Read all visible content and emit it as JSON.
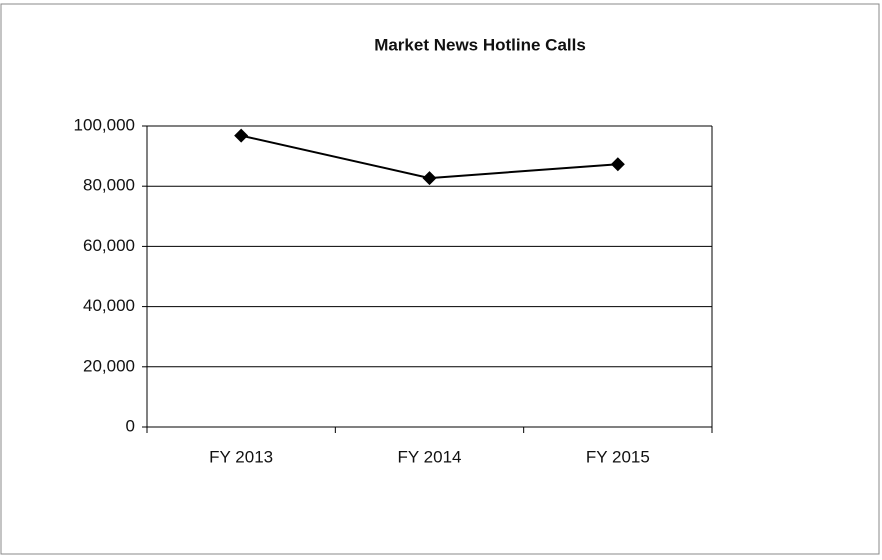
{
  "chart_data": {
    "type": "line",
    "title": "Market News Hotline Calls",
    "categories": [
      "FY 2013",
      "FY 2014",
      "FY 2015"
    ],
    "values": [
      96800,
      82700,
      87300
    ],
    "color": "#000000",
    "ylim": [
      0,
      100000
    ],
    "yticks": [
      0,
      {
        "value": 20000,
        "label": "20,000"
      },
      {
        "value": 40000,
        "label": "40,000"
      },
      {
        "value": 60000,
        "label": "60,000"
      },
      {
        "value": 80000,
        "label": "80,000"
      },
      {
        "value": 100000,
        "label": "100,000"
      }
    ],
    "grid": true
  }
}
